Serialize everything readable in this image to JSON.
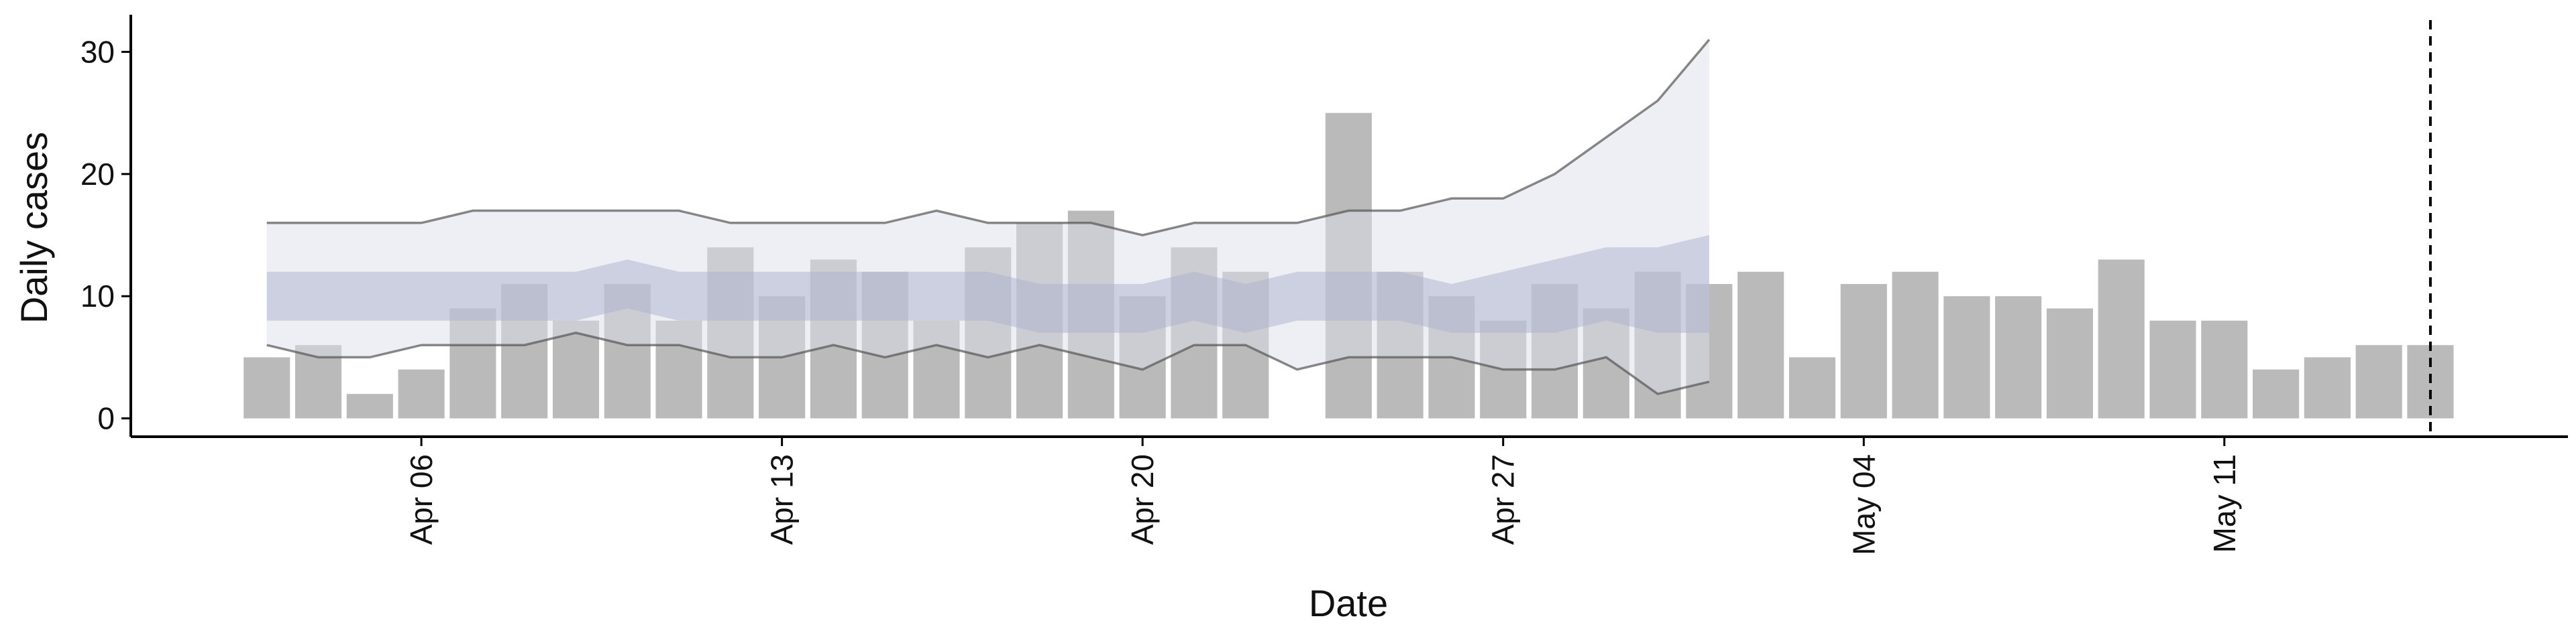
{
  "chart_data": {
    "type": "bar",
    "x_label": "Date",
    "y_label": "Daily cases",
    "x": [
      "Apr 03",
      "Apr 04",
      "Apr 05",
      "Apr 06",
      "Apr 07",
      "Apr 08",
      "Apr 09",
      "Apr 10",
      "Apr 11",
      "Apr 12",
      "Apr 13",
      "Apr 14",
      "Apr 15",
      "Apr 16",
      "Apr 17",
      "Apr 18",
      "Apr 19",
      "Apr 20",
      "Apr 21",
      "Apr 22",
      "Apr 23",
      "Apr 24",
      "Apr 25",
      "Apr 26",
      "Apr 27",
      "Apr 28",
      "Apr 29",
      "Apr 30",
      "May 01",
      "May 02",
      "May 03",
      "May 04",
      "May 05",
      "May 06",
      "May 07",
      "May 08",
      "May 09",
      "May 10",
      "May 11",
      "May 12",
      "May 13",
      "May 14",
      "May 15"
    ],
    "values": [
      5,
      6,
      2,
      4,
      9,
      11,
      8,
      11,
      8,
      14,
      10,
      13,
      12,
      8,
      14,
      16,
      17,
      10,
      14,
      12,
      0,
      25,
      12,
      10,
      8,
      11,
      9,
      12,
      11,
      12,
      5,
      11,
      12,
      10,
      10,
      9,
      13,
      8,
      8,
      4,
      5,
      6,
      6
    ],
    "color": "#bababa",
    "bands": [
      {
        "color": "#dde0ea",
        "lower": [
          6,
          5,
          5,
          6,
          6,
          6,
          7,
          6,
          6,
          5,
          5,
          6,
          5,
          6,
          5,
          6,
          5,
          4,
          6,
          6,
          4,
          5,
          5,
          5,
          4,
          4,
          5,
          2,
          3,
          null,
          null,
          null,
          null,
          null,
          null,
          null,
          null,
          null,
          null,
          null,
          null,
          null,
          null
        ],
        "upper": [
          16,
          16,
          16,
          16,
          17,
          17,
          17,
          17,
          17,
          16,
          16,
          16,
          16,
          17,
          16,
          16,
          16,
          15,
          16,
          16,
          16,
          17,
          17,
          18,
          18,
          20,
          23,
          26,
          31,
          null,
          null,
          null,
          null,
          null,
          null,
          null,
          null,
          null,
          null,
          null,
          null,
          null,
          null
        ]
      },
      {
        "color": "#aab2cc",
        "lower": [
          8,
          8,
          8,
          8,
          8,
          8,
          8,
          9,
          8,
          8,
          8,
          8,
          8,
          8,
          8,
          7,
          7,
          7,
          8,
          7,
          8,
          8,
          8,
          7,
          7,
          7,
          8,
          7,
          7,
          null,
          null,
          null,
          null,
          null,
          null,
          null,
          null,
          null,
          null,
          null,
          null,
          null,
          null
        ],
        "upper": [
          12,
          12,
          12,
          12,
          12,
          12,
          12,
          13,
          12,
          12,
          12,
          12,
          12,
          12,
          12,
          11,
          11,
          11,
          12,
          11,
          12,
          12,
          12,
          11,
          12,
          13,
          14,
          14,
          15,
          null,
          null,
          null,
          null,
          null,
          null,
          null,
          null,
          null,
          null,
          null,
          null,
          null,
          null
        ]
      }
    ],
    "xticks": [
      "Apr 06",
      "Apr 13",
      "Apr 20",
      "Apr 27",
      "May 04",
      "May 11"
    ],
    "vline": "May 15",
    "ylim": [
      -1.5,
      32.6
    ],
    "yticks": [
      0,
      10,
      20,
      30
    ]
  }
}
